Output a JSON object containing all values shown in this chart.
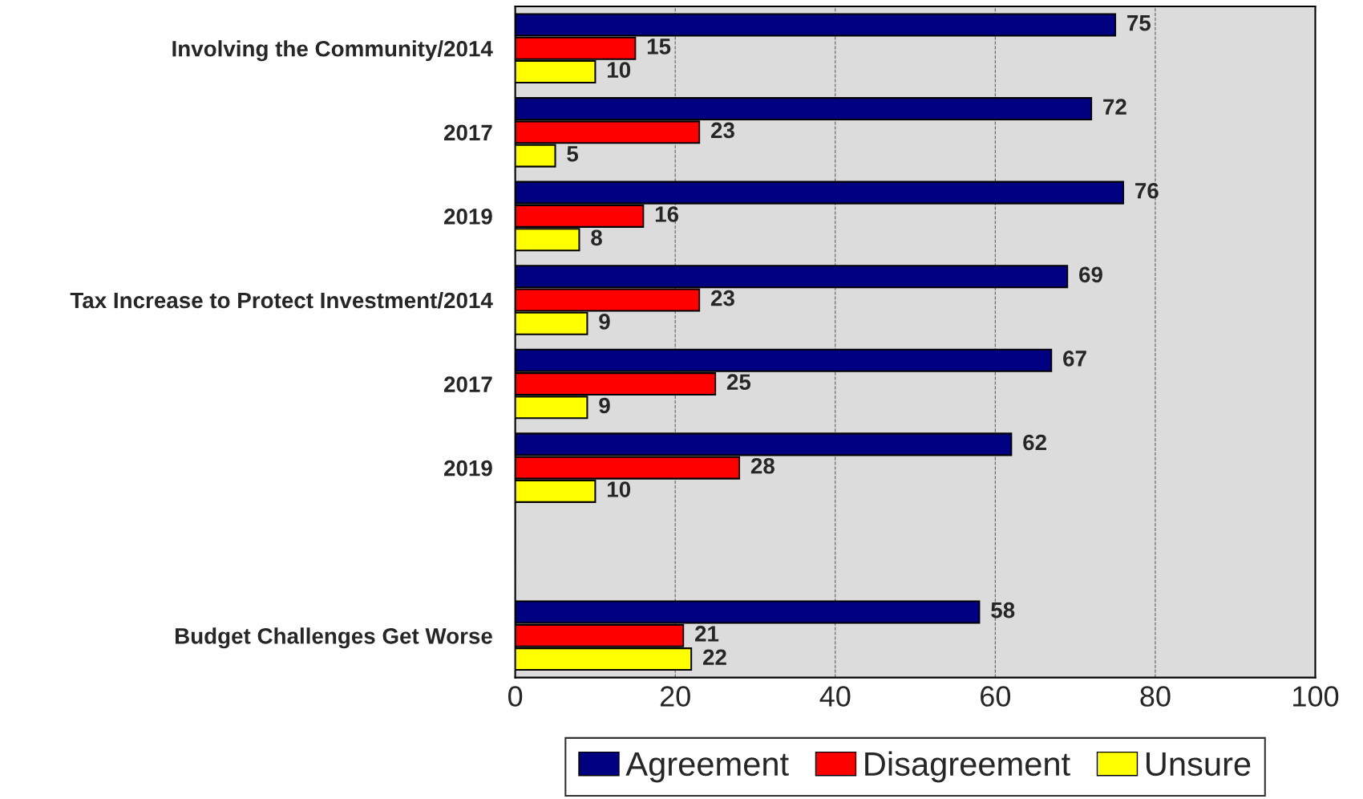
{
  "chart_data": {
    "type": "bar",
    "orientation": "horizontal",
    "categories": [
      "Involving the Community/2014",
      "2017",
      "2019",
      "Tax Increase to Protect Investment/2014",
      "2017",
      "2019",
      null,
      "Budget Challenges Get Worse"
    ],
    "series": [
      {
        "name": "Agreement",
        "color": "#000080",
        "values": [
          75,
          72,
          76,
          69,
          67,
          62,
          null,
          58
        ]
      },
      {
        "name": "Disagreement",
        "color": "#ff0000",
        "values": [
          15,
          23,
          16,
          23,
          25,
          28,
          null,
          21
        ]
      },
      {
        "name": "Unsure",
        "color": "#ffff00",
        "values": [
          10,
          5,
          8,
          9,
          9,
          10,
          null,
          22
        ]
      }
    ],
    "xlim": [
      0,
      100
    ],
    "xticks": [
      0,
      20,
      40,
      60,
      80,
      100
    ],
    "grid": "x",
    "legend": "bottom",
    "data_labels": true
  }
}
